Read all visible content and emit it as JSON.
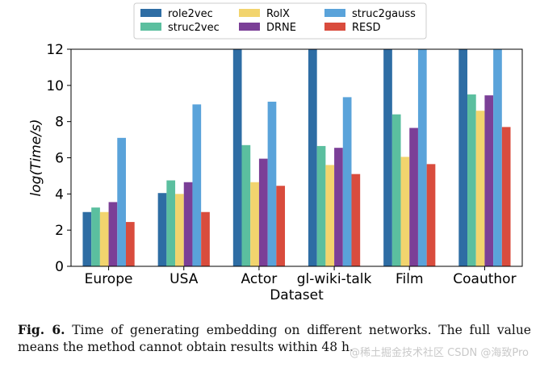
{
  "chart_data": {
    "type": "bar",
    "categories": [
      "Europe",
      "USA",
      "Actor",
      "gl-wiki-talk",
      "Film",
      "Coauthor"
    ],
    "series": [
      {
        "name": "role2vec",
        "color": "#2e6da4",
        "values": [
          3.0,
          4.05,
          12,
          12,
          12,
          12
        ]
      },
      {
        "name": "struc2vec",
        "color": "#5bbf9f",
        "values": [
          3.25,
          4.75,
          6.7,
          6.65,
          8.4,
          9.5
        ]
      },
      {
        "name": "RolX",
        "color": "#f2d46e",
        "values": [
          3.0,
          4.0,
          4.65,
          5.6,
          6.05,
          8.6
        ]
      },
      {
        "name": "DRNE",
        "color": "#7b3f97",
        "values": [
          3.55,
          4.65,
          5.95,
          6.55,
          7.65,
          9.45
        ]
      },
      {
        "name": "struc2gauss",
        "color": "#5aa3da",
        "values": [
          7.1,
          8.95,
          9.1,
          9.35,
          12,
          12
        ]
      },
      {
        "name": "RESD",
        "color": "#d94c3d",
        "values": [
          2.45,
          3.0,
          4.45,
          5.1,
          5.65,
          7.7
        ]
      }
    ],
    "xlabel": "Dataset",
    "ylabel": "log(Time/s)",
    "ylim": [
      0,
      12
    ],
    "yticks": [
      "0",
      "2",
      "4",
      "6",
      "8",
      "10",
      "12"
    ],
    "legend_position": "top-center"
  },
  "caption": {
    "label": "Fig. 6.",
    "text": "Time of generating embedding on different networks. The full value means the method cannot obtain results within 48 h."
  },
  "watermark": "@稀土掘金技术社区 CSDN @海致Pro"
}
